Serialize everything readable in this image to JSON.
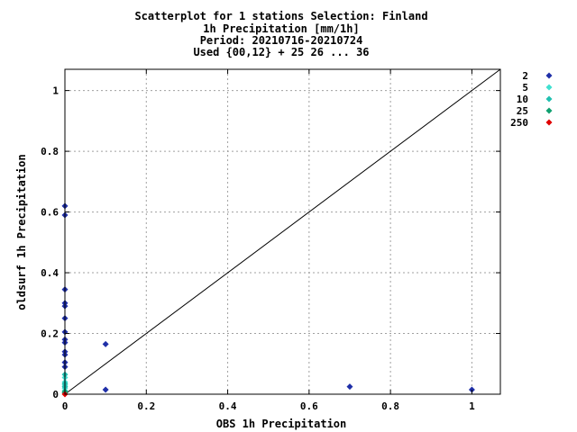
{
  "chart_data": {
    "type": "scatter",
    "title_lines": [
      "Scatterplot for    1 stations Selection: Finland",
      "1h Precipitation [mm/1h]",
      "Period: 20210716-20210724",
      "Used {00,12} + 25 26 ... 36"
    ],
    "xlabel": "OBS 1h Precipitation",
    "ylabel": "oldsurf 1h Precipitation",
    "xlim": [
      0,
      1.07
    ],
    "ylim": [
      0,
      1.07
    ],
    "x_ticks": [
      "0",
      "0.2",
      "0.4",
      "0.6",
      "0.8",
      "1"
    ],
    "x_tick_values": [
      0,
      0.2,
      0.4,
      0.6,
      0.8,
      1
    ],
    "y_ticks": [
      "0",
      "0.2",
      "0.4",
      "0.6",
      "0.8",
      "1"
    ],
    "y_tick_values": [
      0,
      0.2,
      0.4,
      0.6,
      0.8,
      1
    ],
    "grid": true,
    "diagonal": true,
    "legend_position": "right",
    "series": [
      {
        "name": "2",
        "color": "#1f2fa8",
        "points": [
          [
            0,
            0.62
          ],
          [
            0,
            0.59
          ],
          [
            0,
            0.345
          ],
          [
            0,
            0.3
          ],
          [
            0,
            0.29
          ],
          [
            0,
            0.25
          ],
          [
            0,
            0.205
          ],
          [
            0,
            0.18
          ],
          [
            0,
            0.17
          ],
          [
            0,
            0.14
          ],
          [
            0,
            0.13
          ],
          [
            0,
            0.105
          ],
          [
            0,
            0.09
          ],
          [
            0.1,
            0.165
          ],
          [
            0.1,
            0.015
          ],
          [
            0.7,
            0.025
          ],
          [
            1.0,
            0.015
          ]
        ]
      },
      {
        "name": "5",
        "color": "#40e0d0",
        "points": [
          [
            0,
            0.055
          ],
          [
            0,
            0.04
          ],
          [
            0,
            0.03
          ],
          [
            0,
            0.02
          ],
          [
            0,
            0.012
          ]
        ]
      },
      {
        "name": "10",
        "color": "#20c0b0",
        "points": [
          [
            0,
            0.065
          ],
          [
            0,
            0.035
          ],
          [
            0,
            0.025
          ]
        ]
      },
      {
        "name": "25",
        "color": "#10a070",
        "points": [
          [
            0,
            0.008
          ],
          [
            0,
            0.004
          ]
        ]
      },
      {
        "name": "250",
        "color": "#e00000",
        "points": [
          [
            0,
            0
          ]
        ]
      }
    ]
  }
}
